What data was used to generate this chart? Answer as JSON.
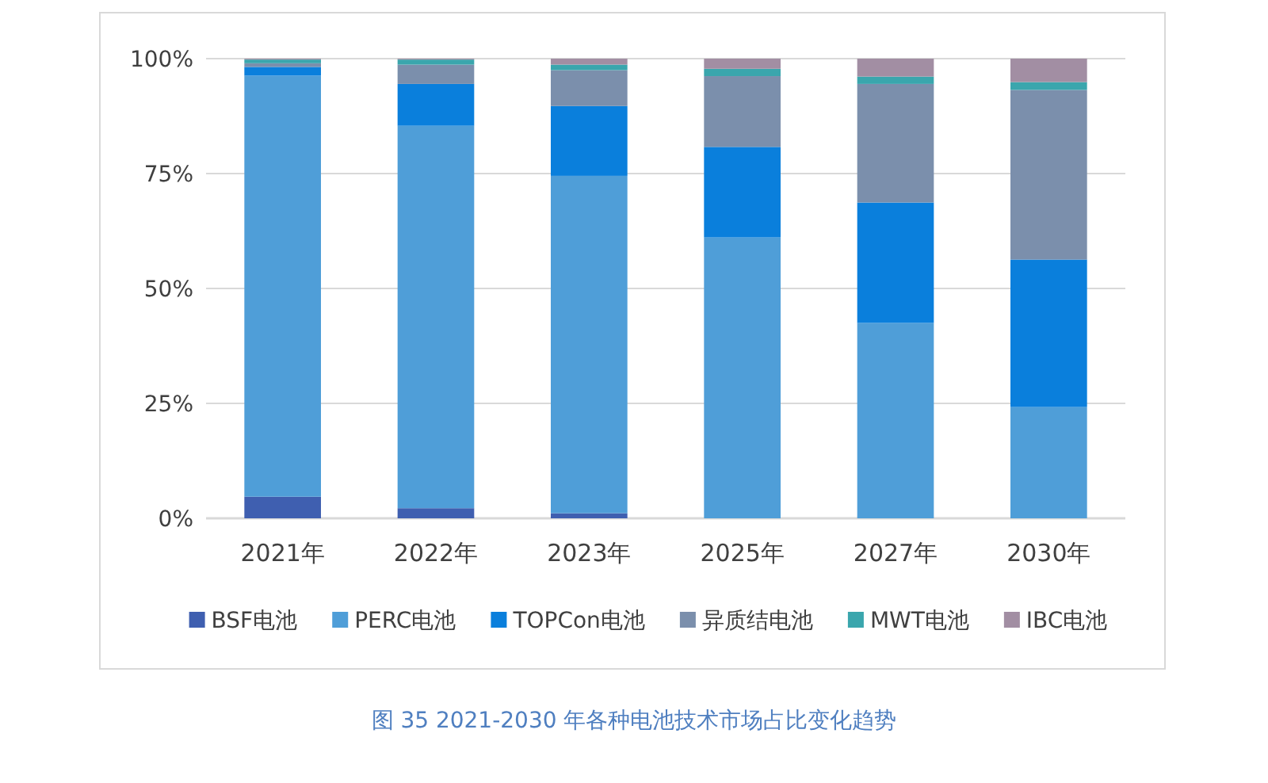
{
  "chart_data": {
    "type": "bar",
    "stacked": true,
    "categories": [
      "2021年",
      "2022年",
      "2023年",
      "2025年",
      "2027年",
      "2030年"
    ],
    "series": [
      {
        "name": "BSF电池",
        "color": "#3f5fb0",
        "values": [
          4.7,
          2.2,
          1.1,
          0,
          0,
          0
        ]
      },
      {
        "name": "PERC电池",
        "color": "#4f9ed8",
        "values": [
          91.6,
          83.2,
          73.4,
          61.1,
          42.5,
          24.2
        ]
      },
      {
        "name": "TOPCon电池",
        "color": "#0a7fdc",
        "values": [
          1.9,
          9.1,
          15.2,
          19.7,
          26.2,
          32.1
        ]
      },
      {
        "name": "异质结电池",
        "color": "#7b8fac",
        "values": [
          0.8,
          4.2,
          7.8,
          15.4,
          25.8,
          36.9
        ]
      },
      {
        "name": "MWT电池",
        "color": "#3aa6ad",
        "values": [
          0.8,
          1.1,
          1.2,
          1.6,
          1.6,
          1.7
        ]
      },
      {
        "name": "IBC电池",
        "color": "#a28ea3",
        "values": [
          0.2,
          0.2,
          1.3,
          2.2,
          3.9,
          5.1
        ]
      }
    ],
    "ylim": [
      0,
      100
    ],
    "yticks": [
      {
        "value": 0,
        "label": "0%"
      },
      {
        "value": 25,
        "label": "25%"
      },
      {
        "value": 50,
        "label": "50%"
      },
      {
        "value": 75,
        "label": "75%"
      },
      {
        "value": 100,
        "label": "100%"
      }
    ],
    "grid": "y",
    "legend": "bottom",
    "annotations": [
      "图 35    2021-2030 年各种电池技术市场占比变化趋势"
    ]
  }
}
